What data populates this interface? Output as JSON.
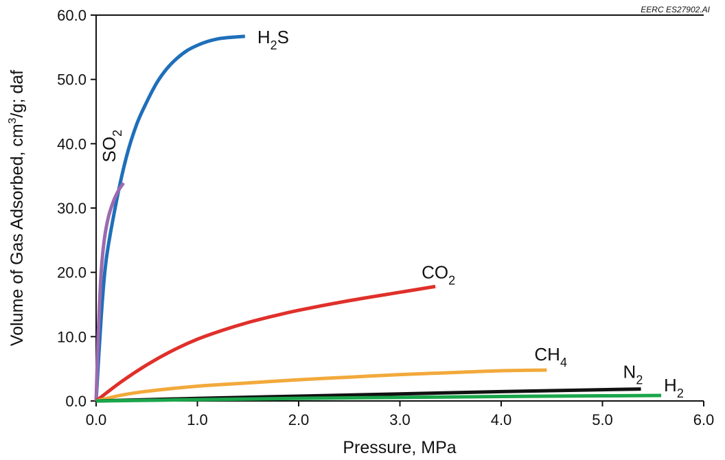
{
  "chart_data": {
    "type": "line",
    "title": "",
    "credit": "EERC ES27902.AI",
    "xlabel": "Pressure, MPa",
    "ylabel": "Volume of Gas Adsorbed, cm3/g; daf",
    "ylabel_parts": [
      "Volume of Gas Adsorbed, cm",
      "3",
      "/g; daf"
    ],
    "xlim": [
      0,
      6
    ],
    "ylim": [
      0,
      60
    ],
    "xticks": [
      "0.0",
      "1.0",
      "2.0",
      "3.0",
      "4.0",
      "5.0",
      "6.0"
    ],
    "yticks": [
      "0.0",
      "10.0",
      "20.0",
      "30.0",
      "40.0",
      "50.0",
      "60.0"
    ],
    "grid": false,
    "legend": "none (series labeled directly on curves)",
    "series": [
      {
        "name": "H2S",
        "label_main": "H",
        "label_sub": "2",
        "label_tail": "S",
        "color": "#1f6fba",
        "points": [
          [
            0,
            0
          ],
          [
            0.05,
            13
          ],
          [
            0.1,
            22
          ],
          [
            0.2,
            31
          ],
          [
            0.3,
            38
          ],
          [
            0.4,
            43
          ],
          [
            0.5,
            46.5
          ],
          [
            0.6,
            49.5
          ],
          [
            0.7,
            51.7
          ],
          [
            0.8,
            53.3
          ],
          [
            0.9,
            54.5
          ],
          [
            1.0,
            55.3
          ],
          [
            1.1,
            55.9
          ],
          [
            1.2,
            56.3
          ],
          [
            1.3,
            56.5
          ],
          [
            1.47,
            56.7
          ]
        ]
      },
      {
        "name": "SO2",
        "label_main": "SO",
        "label_sub": "2",
        "label_tail": "",
        "color": "#9b6aaf",
        "points": [
          [
            0,
            0
          ],
          [
            0.02,
            10
          ],
          [
            0.05,
            20
          ],
          [
            0.08,
            25
          ],
          [
            0.12,
            28.5
          ],
          [
            0.17,
            31
          ],
          [
            0.22,
            32.7
          ],
          [
            0.27,
            33.9
          ]
        ]
      },
      {
        "name": "CO2",
        "label_main": "CO",
        "label_sub": "2",
        "label_tail": "",
        "color": "#e0302a",
        "points": [
          [
            0,
            0
          ],
          [
            0.25,
            3
          ],
          [
            0.5,
            5.6
          ],
          [
            0.75,
            7.8
          ],
          [
            1.0,
            9.6
          ],
          [
            1.25,
            11
          ],
          [
            1.5,
            12.2
          ],
          [
            1.75,
            13.2
          ],
          [
            2.0,
            14.1
          ],
          [
            2.5,
            15.6
          ],
          [
            3.0,
            16.9
          ],
          [
            3.35,
            17.8
          ]
        ]
      },
      {
        "name": "CH4",
        "label_main": "CH",
        "label_sub": "4",
        "label_tail": "",
        "color": "#f2a93b",
        "points": [
          [
            0,
            0
          ],
          [
            0.25,
            0.9
          ],
          [
            0.5,
            1.5
          ],
          [
            1.0,
            2.3
          ],
          [
            1.5,
            2.8
          ],
          [
            2.0,
            3.3
          ],
          [
            2.5,
            3.7
          ],
          [
            3.0,
            4.1
          ],
          [
            3.5,
            4.4
          ],
          [
            4.0,
            4.7
          ],
          [
            4.45,
            4.8
          ]
        ]
      },
      {
        "name": "N2",
        "label_main": "N",
        "label_sub": "2",
        "label_tail": "",
        "color": "#111111",
        "points": [
          [
            0,
            0
          ],
          [
            1.0,
            0.4
          ],
          [
            2.0,
            0.75
          ],
          [
            3.0,
            1.1
          ],
          [
            4.0,
            1.45
          ],
          [
            5.0,
            1.75
          ],
          [
            5.38,
            1.85
          ]
        ]
      },
      {
        "name": "H2",
        "label_main": "H",
        "label_sub": "2",
        "label_tail": "",
        "color": "#1aa64b",
        "points": [
          [
            0,
            0
          ],
          [
            1.0,
            0.2
          ],
          [
            2.0,
            0.4
          ],
          [
            3.0,
            0.55
          ],
          [
            4.0,
            0.7
          ],
          [
            5.0,
            0.8
          ],
          [
            5.58,
            0.85
          ]
        ]
      }
    ]
  }
}
